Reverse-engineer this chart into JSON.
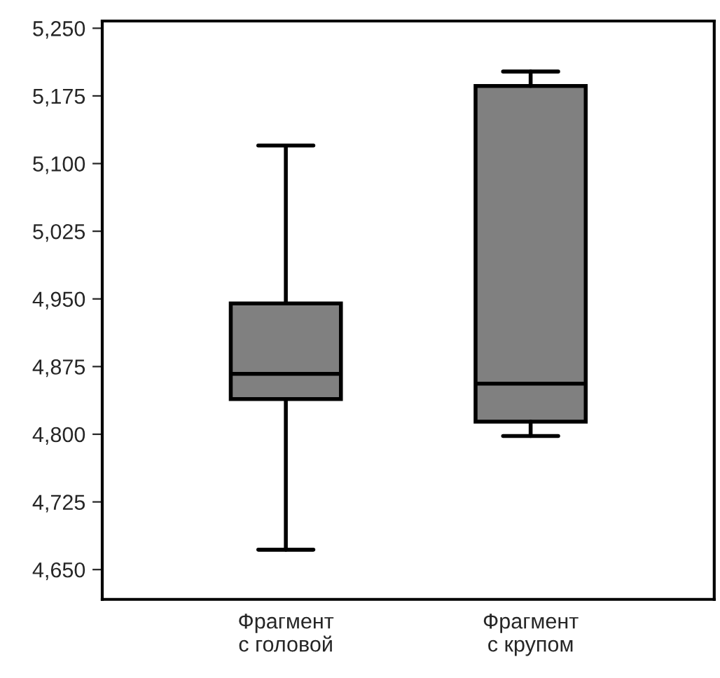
{
  "chart_data": {
    "type": "box",
    "categories": [
      "Фрагмент\nс головой",
      "Фрагмент\nс крупом"
    ],
    "color": "#808080",
    "boxes": [
      {
        "low": 4672,
        "q1": 4839,
        "median": 4867,
        "q3": 4945,
        "high": 5120
      },
      {
        "low": 4798,
        "q1": 4814,
        "median": 4856,
        "q3": 5186,
        "high": 5202
      }
    ],
    "ylim": [
      4617,
      5258
    ],
    "yticks": [
      {
        "value": 4650,
        "label": "4,650"
      },
      {
        "value": 4725,
        "label": "4,725"
      },
      {
        "value": 4800,
        "label": "4,800"
      },
      {
        "value": 4875,
        "label": "4,875"
      },
      {
        "value": 4950,
        "label": "4,950"
      },
      {
        "value": 5025,
        "label": "5,025"
      },
      {
        "value": 5100,
        "label": "5,100"
      },
      {
        "value": 5175,
        "label": "5,175"
      },
      {
        "value": 5250,
        "label": "5,250"
      }
    ],
    "grid": false
  }
}
